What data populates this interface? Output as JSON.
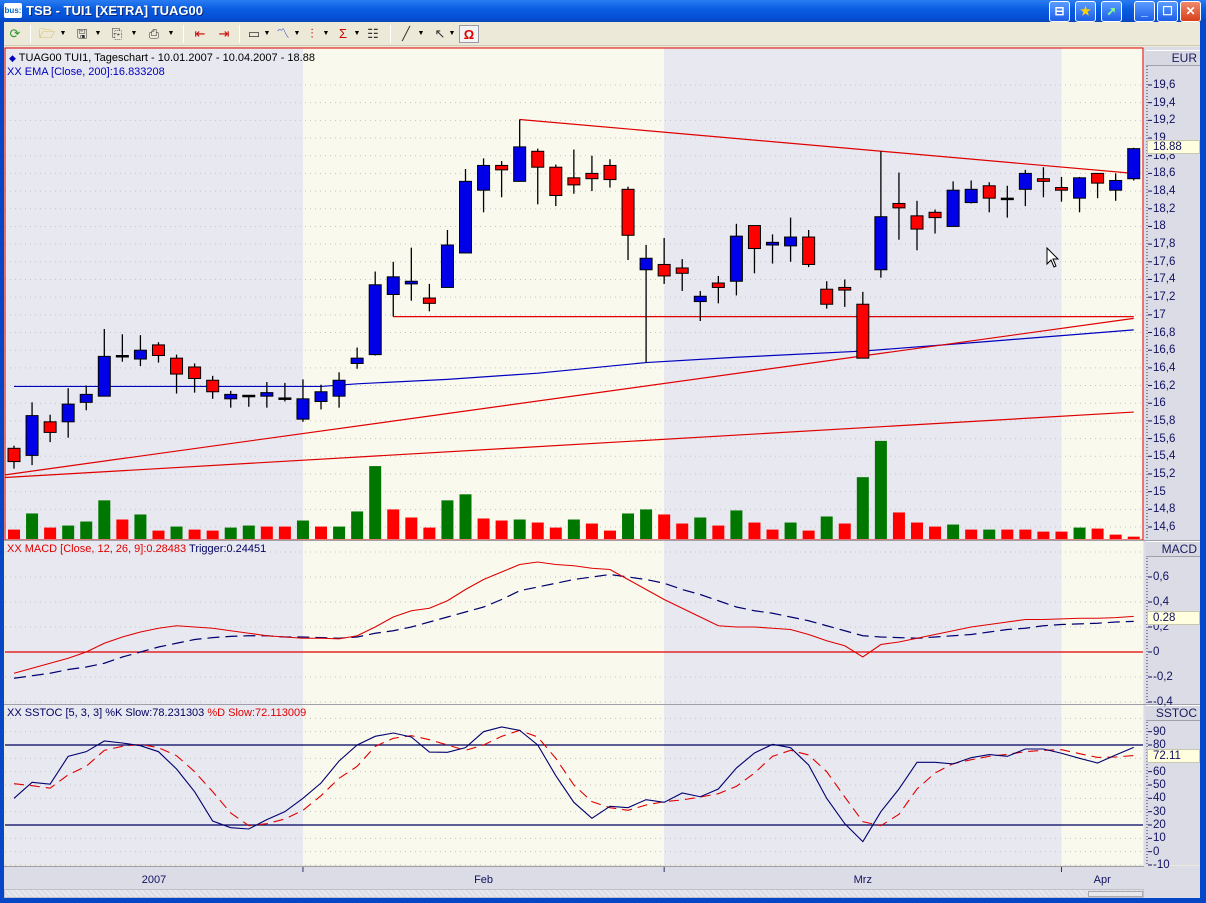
{
  "window": {
    "title": "TSB - TUI1 [XETRA] TUAG00",
    "app_icon_text": "bus:",
    "buttons": [
      "pin-icon",
      "star-icon",
      "export-icon",
      "minimize-icon",
      "maximize-icon",
      "close-icon"
    ]
  },
  "toolbar": {
    "items": [
      "refresh-icon",
      "open-folder-icon",
      "save-icon",
      "copy-icon",
      "print-icon",
      "chart-back-icon",
      "chart-forward-icon",
      "window-layout-icon",
      "indicator-icon",
      "bar-style-icon",
      "sigma-formula-icon",
      "properties-icon",
      "draw-line-icon",
      "pointer-icon",
      "magnet-icon"
    ]
  },
  "main_panel": {
    "header": "TUAG00  TUI1, Tageschart - 10.01.2007 - 10.04.2007 - 18.88",
    "ema_label": "XX EMA [Close, 200]:16.833208",
    "currency": "EUR",
    "last_price_label": "18.88"
  },
  "macd_panel": {
    "label": "XX MACD [Close, 12, 26, 9]:0.28483",
    "trigger_label": "Trigger:0.24451",
    "axis_title": "MACD",
    "last_label": "0.28"
  },
  "sstoc_panel": {
    "label": "XX SSTOC [5, 3, 3] %K Slow:78.231303",
    "d_label": "%D Slow:72.113009",
    "axis_title": "SSTOC",
    "last_label": "72.11"
  },
  "colors": {
    "up_candle": "#0000e8",
    "down_candle": "#ff0000",
    "volume_up": "#007800",
    "volume_down": "#ff0000",
    "ema": "#0000c0",
    "trendline": "#e00000",
    "band_a": "#e8e8f0",
    "band_b": "#f9f9ee"
  },
  "x_axis": {
    "months": [
      {
        "label": "2007",
        "start_bar": 1
      },
      {
        "label": "Feb",
        "start_bar": 17
      },
      {
        "label": "Mrz",
        "start_bar": 37
      },
      {
        "label": "Apr",
        "start_bar": 59
      }
    ]
  },
  "chart_data": [
    {
      "type": "candlestick",
      "title": "TUAG00  TUI1, Tageschart - 10.01.2007 - 10.04.2007 - 18.88",
      "ylim": [
        14.6,
        19.6
      ],
      "y_ticks": [
        "19,6",
        "19,4",
        "19,2",
        "19",
        "18,8",
        "18,6",
        "18,4",
        "18,2",
        "18",
        "17,8",
        "17,6",
        "17,4",
        "17,2",
        "17",
        "16,8",
        "16,6",
        "16,4",
        "16,2",
        "16",
        "15,8",
        "15,6",
        "15,4",
        "15,2",
        "15",
        "14,8",
        "14,6"
      ],
      "ohlc": [
        [
          15.49,
          15.52,
          15.26,
          15.34
        ],
        [
          15.41,
          16.01,
          15.3,
          15.86
        ],
        [
          15.79,
          15.87,
          15.56,
          15.67
        ],
        [
          15.79,
          16.17,
          15.61,
          15.99
        ],
        [
          16.01,
          16.2,
          15.92,
          16.1
        ],
        [
          16.08,
          16.84,
          16.08,
          16.53
        ],
        [
          16.54,
          16.78,
          16.47,
          16.54
        ],
        [
          16.5,
          16.77,
          16.42,
          16.6
        ],
        [
          16.66,
          16.69,
          16.46,
          16.54
        ],
        [
          16.51,
          16.55,
          16.11,
          16.33
        ],
        [
          16.41,
          16.45,
          16.12,
          16.28
        ],
        [
          16.26,
          16.31,
          16.05,
          16.13
        ],
        [
          16.05,
          16.14,
          15.95,
          16.1
        ],
        [
          16.09,
          16.09,
          15.96,
          16.09
        ],
        [
          16.08,
          16.24,
          15.95,
          16.12
        ],
        [
          16.06,
          16.23,
          16.02,
          16.06
        ],
        [
          15.82,
          16.27,
          15.79,
          16.05
        ],
        [
          16.02,
          16.21,
          15.93,
          16.13
        ],
        [
          16.08,
          16.35,
          15.95,
          16.26
        ],
        [
          16.45,
          16.63,
          16.39,
          16.51
        ],
        [
          16.55,
          17.49,
          16.54,
          17.34
        ],
        [
          17.23,
          17.6,
          16.98,
          17.43
        ],
        [
          17.35,
          17.76,
          17.16,
          17.38
        ],
        [
          17.19,
          17.35,
          17.04,
          17.13
        ],
        [
          17.31,
          17.96,
          17.31,
          17.79
        ],
        [
          17.7,
          18.65,
          17.7,
          18.51
        ],
        [
          18.41,
          18.77,
          18.16,
          18.69
        ],
        [
          18.69,
          18.74,
          18.33,
          18.64
        ],
        [
          18.51,
          19.21,
          18.51,
          18.9
        ],
        [
          18.85,
          18.88,
          18.25,
          18.67
        ],
        [
          18.67,
          18.7,
          18.23,
          18.35
        ],
        [
          18.55,
          18.87,
          18.37,
          18.47
        ],
        [
          18.6,
          18.8,
          18.4,
          18.54
        ],
        [
          18.69,
          18.76,
          18.44,
          18.53
        ],
        [
          18.42,
          18.45,
          17.62,
          17.9
        ],
        [
          17.51,
          17.79,
          16.46,
          17.64
        ],
        [
          17.57,
          17.87,
          17.35,
          17.44
        ],
        [
          17.53,
          17.63,
          17.27,
          17.47
        ],
        [
          17.15,
          17.27,
          16.93,
          17.21
        ],
        [
          17.36,
          17.44,
          17.13,
          17.31
        ],
        [
          17.38,
          18.03,
          17.22,
          17.89
        ],
        [
          18.01,
          18.01,
          17.47,
          17.75
        ],
        [
          17.79,
          17.91,
          17.58,
          17.82
        ],
        [
          17.78,
          18.1,
          17.6,
          17.88
        ],
        [
          17.88,
          17.96,
          17.54,
          17.57
        ],
        [
          17.29,
          17.38,
          17.07,
          17.12
        ],
        [
          17.31,
          17.4,
          17.09,
          17.28
        ],
        [
          17.12,
          17.26,
          16.51,
          16.51
        ],
        [
          17.51,
          18.85,
          17.42,
          18.11
        ],
        [
          18.26,
          18.61,
          17.85,
          18.21
        ],
        [
          18.12,
          18.29,
          17.73,
          17.97
        ],
        [
          18.16,
          18.19,
          17.92,
          18.1
        ],
        [
          18.0,
          18.51,
          18.0,
          18.41
        ],
        [
          18.27,
          18.52,
          18.26,
          18.42
        ],
        [
          18.46,
          18.5,
          18.16,
          18.32
        ],
        [
          18.32,
          18.46,
          18.1,
          18.32
        ],
        [
          18.42,
          18.64,
          18.23,
          18.6
        ],
        [
          18.54,
          18.67,
          18.33,
          18.51
        ],
        [
          18.44,
          18.56,
          18.28,
          18.41
        ],
        [
          18.32,
          18.56,
          18.16,
          18.55
        ],
        [
          18.6,
          18.6,
          18.32,
          18.49
        ],
        [
          18.41,
          18.6,
          18.29,
          18.52
        ],
        [
          18.54,
          18.89,
          18.52,
          18.88
        ]
      ],
      "volume_relative": [
        28,
        76,
        34,
        40,
        52,
        115,
        58,
        73,
        25,
        37,
        28,
        25,
        34,
        40,
        37,
        37,
        55,
        37,
        37,
        82,
        217,
        88,
        64,
        34,
        115,
        133,
        61,
        55,
        58,
        49,
        34,
        58,
        46,
        25,
        76,
        88,
        73,
        46,
        64,
        40,
        85,
        49,
        28,
        49,
        25,
        67,
        46,
        184,
        292,
        79,
        49,
        37,
        43,
        28,
        28,
        28,
        28,
        22,
        22,
        34,
        31,
        13,
        7
      ],
      "volume_direction": [
        "d",
        "u",
        "d",
        "u",
        "u",
        "u",
        "d",
        "u",
        "d",
        "u",
        "d",
        "d",
        "u",
        "u",
        "d",
        "d",
        "u",
        "d",
        "u",
        "u",
        "u",
        "d",
        "d",
        "d",
        "u",
        "u",
        "d",
        "d",
        "u",
        "d",
        "d",
        "u",
        "d",
        "d",
        "u",
        "u",
        "d",
        "d",
        "u",
        "d",
        "u",
        "d",
        "d",
        "u",
        "d",
        "u",
        "d",
        "u",
        "u",
        "d",
        "d",
        "d",
        "u",
        "d",
        "u",
        "d",
        "d",
        "d",
        "d",
        "u",
        "d",
        "d",
        "d"
      ],
      "ema200_points": [
        [
          1,
          16.19
        ],
        [
          18,
          16.19
        ],
        [
          20,
          16.22
        ],
        [
          25,
          16.27
        ],
        [
          30,
          16.34
        ],
        [
          36,
          16.46
        ],
        [
          41,
          16.52
        ],
        [
          48,
          16.59
        ],
        [
          55,
          16.7
        ],
        [
          63,
          16.83
        ]
      ],
      "trendlines": [
        {
          "from": [
            29,
            19.21
          ],
          "to": [
            63,
            18.6
          ]
        },
        {
          "from": [
            22,
            16.98
          ],
          "to": [
            63,
            16.98
          ]
        },
        {
          "from": [
            0.5,
            15.19
          ],
          "to": [
            63,
            16.96
          ]
        },
        {
          "from": [
            0.5,
            15.16
          ],
          "to": [
            63,
            15.9
          ]
        }
      ]
    },
    {
      "type": "line",
      "title": "XX MACD [Close, 12, 26, 9]:0.28483",
      "ylim": [
        -0.4,
        0.75
      ],
      "y_ticks": [
        "0,6",
        "0,4",
        "0,2",
        "0",
        "-0,2",
        "-0,4"
      ],
      "series": [
        {
          "name": "MACD",
          "values": [
            -0.17,
            -0.13,
            -0.09,
            -0.05,
            0.0,
            0.07,
            0.12,
            0.16,
            0.19,
            0.21,
            0.2,
            0.19,
            0.17,
            0.15,
            0.13,
            0.12,
            0.11,
            0.11,
            0.105,
            0.13,
            0.2,
            0.28,
            0.33,
            0.35,
            0.41,
            0.5,
            0.58,
            0.64,
            0.7,
            0.72,
            0.7,
            0.69,
            0.67,
            0.66,
            0.58,
            0.5,
            0.42,
            0.35,
            0.28,
            0.21,
            0.2,
            0.2,
            0.19,
            0.18,
            0.14,
            0.09,
            0.05,
            -0.04,
            0.06,
            0.08,
            0.11,
            0.14,
            0.17,
            0.2,
            0.22,
            0.24,
            0.26,
            0.26,
            0.265,
            0.27,
            0.27,
            0.275,
            0.285
          ]
        },
        {
          "name": "Trigger",
          "values": [
            -0.21,
            -0.19,
            -0.17,
            -0.14,
            -0.12,
            -0.09,
            -0.04,
            0.0,
            0.04,
            0.07,
            0.1,
            0.115,
            0.125,
            0.13,
            0.13,
            0.12,
            0.12,
            0.115,
            0.11,
            0.12,
            0.15,
            0.17,
            0.2,
            0.24,
            0.28,
            0.32,
            0.36,
            0.42,
            0.49,
            0.52,
            0.55,
            0.58,
            0.6,
            0.62,
            0.6,
            0.58,
            0.55,
            0.5,
            0.46,
            0.41,
            0.36,
            0.33,
            0.31,
            0.28,
            0.25,
            0.21,
            0.17,
            0.13,
            0.12,
            0.115,
            0.11,
            0.12,
            0.13,
            0.14,
            0.16,
            0.18,
            0.19,
            0.21,
            0.22,
            0.225,
            0.23,
            0.24,
            0.245
          ]
        }
      ],
      "reference_lines": [
        0
      ]
    },
    {
      "type": "line",
      "title": "XX SSTOC [5, 3, 3] %K Slow:78.231303",
      "ylim": [
        -10,
        100
      ],
      "y_ticks": [
        "90",
        "80",
        "60",
        "50",
        "40",
        "30",
        "20",
        "10",
        "0",
        "-10"
      ],
      "series": [
        {
          "name": "%K Slow",
          "values": [
            40,
            52,
            50.6,
            71.5,
            75,
            83,
            81.5,
            79.5,
            75,
            62,
            45,
            23,
            18,
            17,
            24,
            30,
            40,
            51.5,
            68,
            80,
            86.5,
            89,
            86,
            74.7,
            74.5,
            78,
            90,
            93.5,
            91,
            80,
            57,
            37,
            25,
            34,
            33,
            39,
            37,
            44,
            41.2,
            47,
            62.7,
            74,
            80.5,
            78,
            65,
            40,
            21,
            7.5,
            30,
            47,
            67,
            67,
            65.8,
            70.5,
            72.8,
            71.5,
            77,
            77,
            73.8,
            70,
            66.5,
            72.5,
            78.2
          ]
        },
        {
          "name": "%D Slow",
          "values": [
            51,
            49.5,
            47.6,
            57.7,
            64,
            76,
            79,
            80.5,
            78,
            72,
            60,
            45,
            29,
            19.5,
            21,
            24.5,
            31,
            42,
            55,
            64,
            79,
            85,
            87,
            84,
            80,
            76,
            80,
            86.5,
            91,
            86,
            70,
            50,
            37.5,
            33,
            31,
            35,
            37.5,
            38.8,
            41,
            43.5,
            49,
            59,
            71.5,
            76,
            72.5,
            60,
            41,
            22.5,
            19.5,
            28,
            47,
            59,
            66,
            69,
            71.5,
            73,
            75,
            76,
            76.5,
            73.5,
            70.7,
            71,
            72.1
          ]
        }
      ],
      "reference_lines": [
        80,
        20
      ]
    }
  ]
}
